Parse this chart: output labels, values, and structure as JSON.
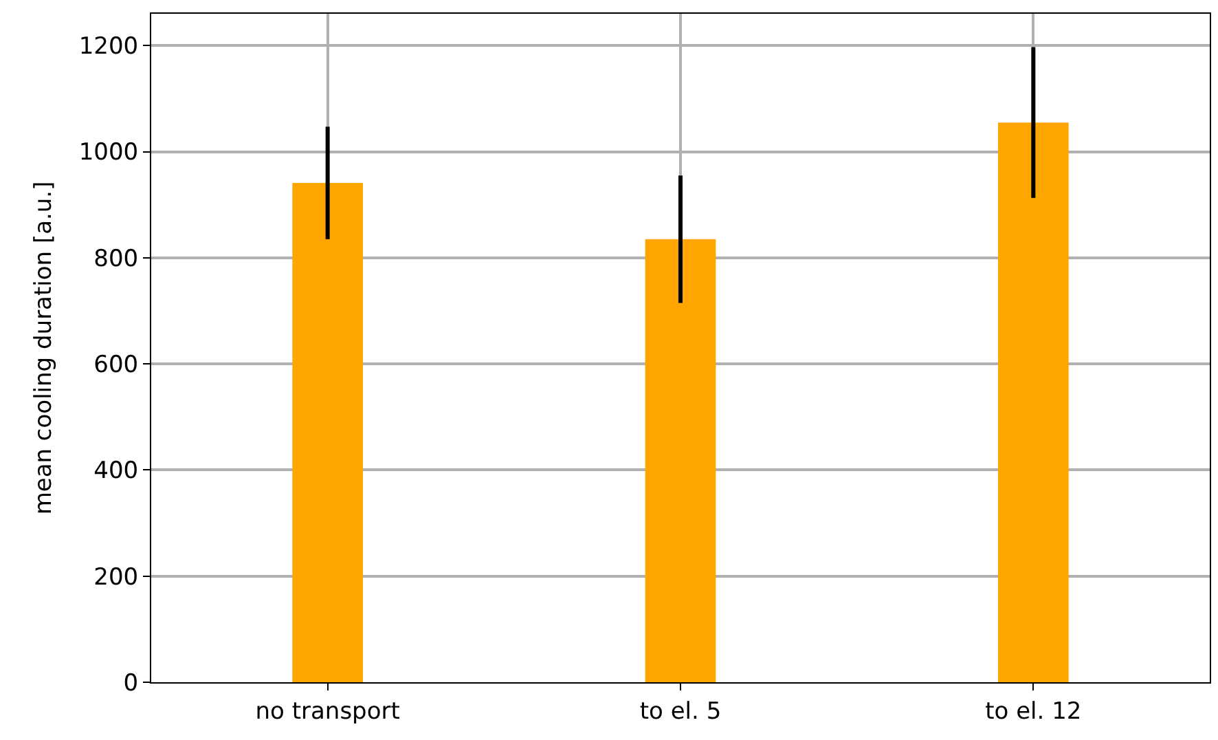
{
  "chart_data": {
    "type": "bar",
    "ylabel": "mean cooling duration [a.u.]",
    "categories": [
      "no transport",
      "to el. 5",
      "to el. 12"
    ],
    "values": [
      941,
      835,
      1055
    ],
    "errors": [
      106,
      120,
      142
    ],
    "color": "#ffa500",
    "ylim": [
      0,
      1260
    ],
    "yticks": [
      0,
      200,
      400,
      600,
      800,
      1000,
      1200
    ],
    "grid": true
  }
}
